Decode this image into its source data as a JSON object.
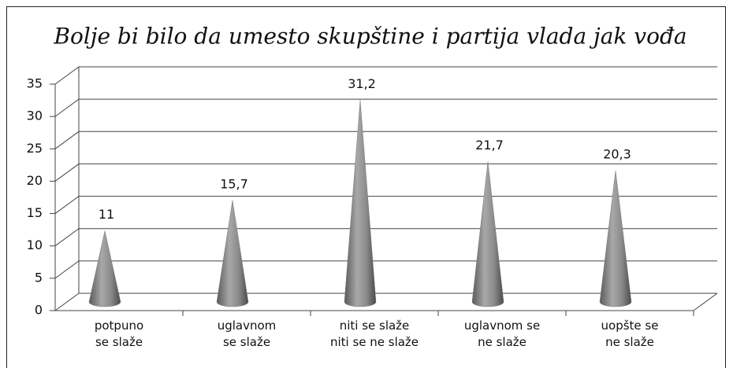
{
  "chart_data": {
    "type": "cone",
    "title": "Bolje bi bilo da umesto skupštine i partija vlada jak vođa",
    "categories": [
      "potpuno\nse slaže",
      "uglavnom\nse slaže",
      "niti se slaže\nniti se ne slaže",
      "uglavnom se\nne slaže",
      "uopšte se\nne slaže"
    ],
    "values": [
      11,
      15.7,
      31.2,
      21.7,
      20.3
    ],
    "value_labels": [
      "11",
      "15,7",
      "31,2",
      "21,7",
      "20,3"
    ],
    "color": "#7a7a7a",
    "ylim": [
      0,
      35
    ],
    "yticks": [
      0,
      5,
      10,
      15,
      20,
      25,
      30,
      35
    ],
    "grid": true
  }
}
